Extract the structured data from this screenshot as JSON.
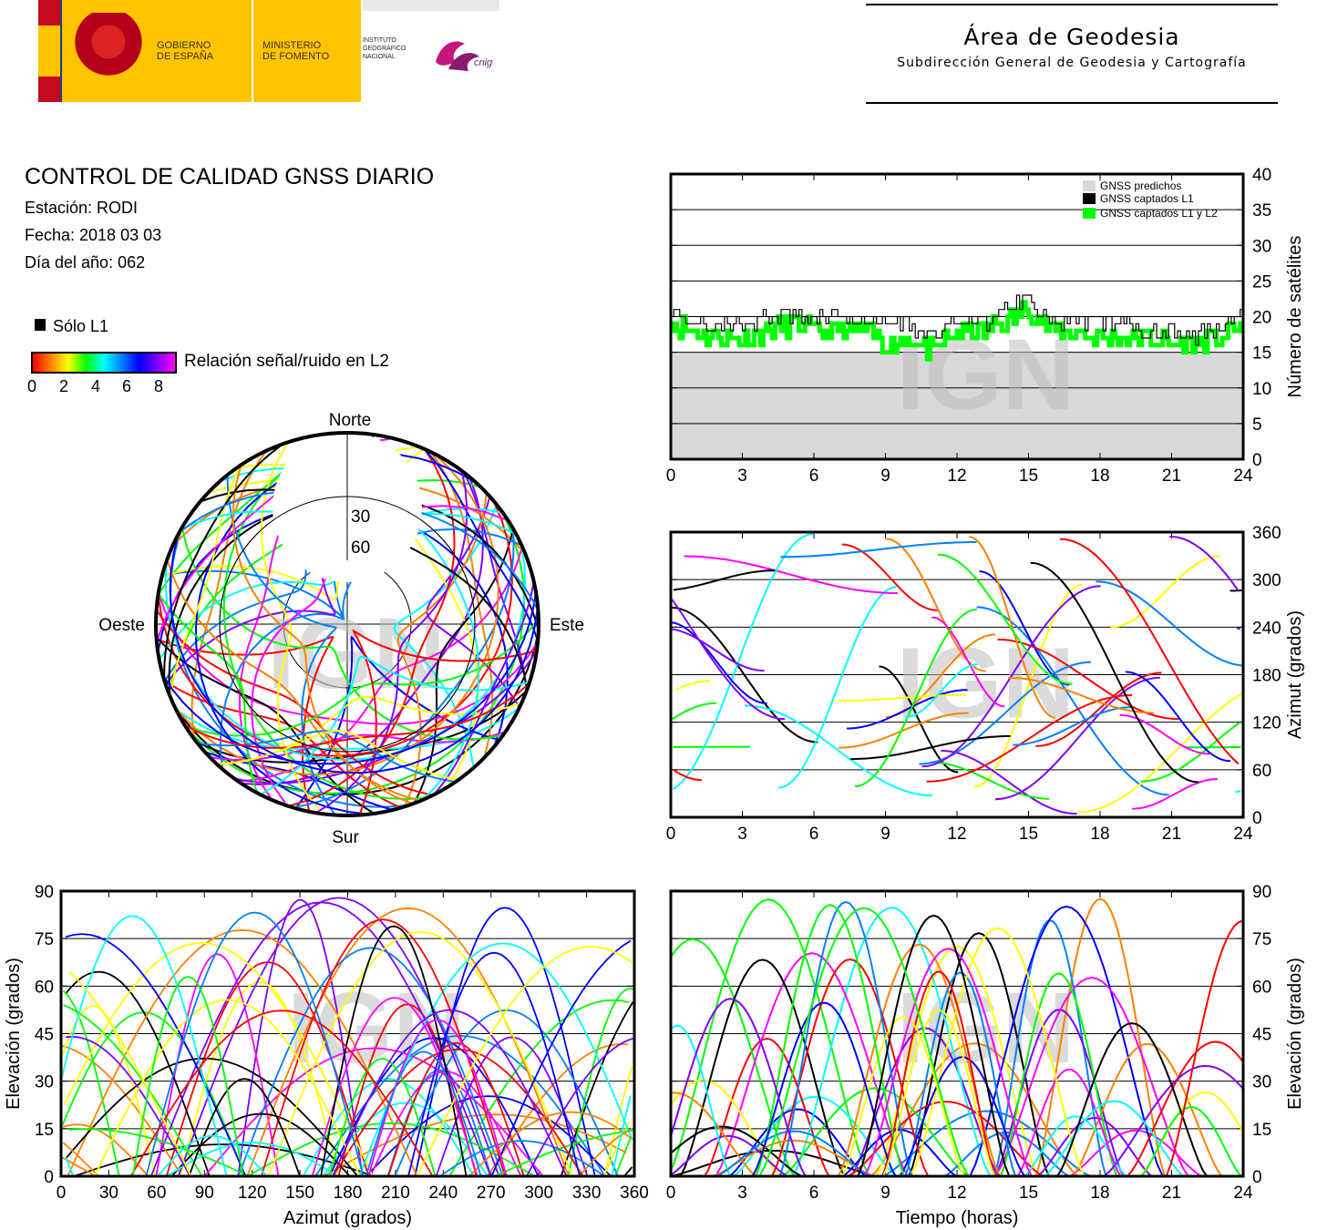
{
  "header": {
    "gobierno": "GOBIERNO\nDE ESPAÑA",
    "ministerio": "MINISTERIO\nDE FOMENTO",
    "instituto": "INSTITUTO\nGEOGRÁFICO\nNACIONAL",
    "cnig": "cnig",
    "area_title": "Área de Geodesia",
    "area_subtitle": "Subdirección General de Geodesia y Cartografía"
  },
  "info": {
    "title": "CONTROL DE CALIDAD GNSS DIARIO",
    "station": "Estación: RODI",
    "date": "Fecha: 2018 03 03",
    "doy": "Día del año: 062"
  },
  "legend": {
    "l1_only": "Sólo L1",
    "snr_label": "Relación señal/ruido en L2",
    "snr_ticks": [
      "0",
      "2",
      "4",
      "6",
      "8"
    ],
    "snr_colors": [
      "#ff0000",
      "#ff8000",
      "#ffff00",
      "#00ff00",
      "#00ffff",
      "#0080ff",
      "#0000ff",
      "#8000ff",
      "#ff00ff"
    ]
  },
  "watermark": "IGN",
  "colors": {
    "predicted": "#d8d8d8",
    "l1": "#000000",
    "l1l2": "#00ff00"
  },
  "chart_data": [
    {
      "id": "satellite-count",
      "type": "line",
      "legend": [
        "GNSS predichos",
        "GNSS captados L1",
        "GNSS captados L1 y L2"
      ],
      "ylabel": "Número de satélites",
      "xlim": [
        0,
        24
      ],
      "ylim": [
        0,
        40
      ],
      "xticks": [
        "0",
        "3",
        "6",
        "9",
        "12",
        "15",
        "18",
        "21",
        "24"
      ],
      "yticks": [
        "0",
        "5",
        "10",
        "15",
        "20",
        "25",
        "30",
        "35",
        "40"
      ],
      "grid": true,
      "x": [
        0,
        1,
        2,
        3,
        4,
        5,
        6,
        7,
        8,
        9,
        10,
        11,
        12,
        13,
        14,
        15,
        16,
        17,
        18,
        19,
        20,
        21,
        22,
        23,
        24
      ],
      "series": [
        {
          "name": "GNSS predichos",
          "values": [
            15,
            15,
            15,
            15,
            15,
            15,
            15,
            15,
            15,
            15,
            15,
            15,
            15,
            15,
            15,
            15,
            15,
            15,
            15,
            15,
            15,
            15,
            15,
            15,
            15
          ]
        },
        {
          "name": "GNSS captados L1",
          "values": [
            21,
            19,
            19,
            19,
            20,
            20,
            20,
            20,
            19,
            19,
            19,
            17,
            20,
            19,
            21,
            23,
            19,
            19,
            19,
            19,
            18,
            18,
            17,
            19,
            21
          ]
        },
        {
          "name": "GNSS captados L1 y L2",
          "values": [
            19,
            18,
            17,
            17,
            18,
            19,
            18,
            18,
            18,
            16,
            17,
            15,
            18,
            18,
            19,
            21,
            18,
            18,
            17,
            17,
            17,
            16,
            16,
            17,
            19
          ]
        }
      ]
    },
    {
      "id": "azimuth-time",
      "type": "scatter",
      "xlabel": "",
      "ylabel": "Azimut (grados)",
      "xlim": [
        0,
        24
      ],
      "ylim": [
        0,
        360
      ],
      "xticks": [
        "0",
        "3",
        "6",
        "9",
        "12",
        "15",
        "18",
        "21",
        "24"
      ],
      "yticks": [
        "0",
        "60",
        "120",
        "180",
        "240",
        "300",
        "360"
      ],
      "grid": true
    },
    {
      "id": "elevation-azimuth",
      "type": "scatter",
      "xlabel": "Azimut (grados)",
      "ylabel": "Elevación (grados)",
      "xlim": [
        0,
        360
      ],
      "ylim": [
        0,
        90
      ],
      "xticks": [
        "0",
        "30",
        "60",
        "90",
        "120",
        "150",
        "180",
        "210",
        "240",
        "270",
        "300",
        "330",
        "360"
      ],
      "yticks": [
        "0",
        "15",
        "30",
        "45",
        "60",
        "75",
        "90"
      ],
      "grid": true
    },
    {
      "id": "elevation-time",
      "type": "line",
      "xlabel": "Tiempo (horas)",
      "ylabel": "Elevación (grados)",
      "xlim": [
        0,
        24
      ],
      "ylim": [
        0,
        90
      ],
      "xticks": [
        "0",
        "3",
        "6",
        "9",
        "12",
        "15",
        "18",
        "21",
        "24"
      ],
      "yticks": [
        "0",
        "15",
        "30",
        "45",
        "60",
        "75",
        "90"
      ],
      "grid": true
    },
    {
      "id": "skyplot",
      "type": "scatter",
      "directions": {
        "north": "Norte",
        "south": "Sur",
        "west": "Oeste",
        "east": "Este"
      },
      "ring_labels": [
        "30",
        "60"
      ]
    }
  ]
}
